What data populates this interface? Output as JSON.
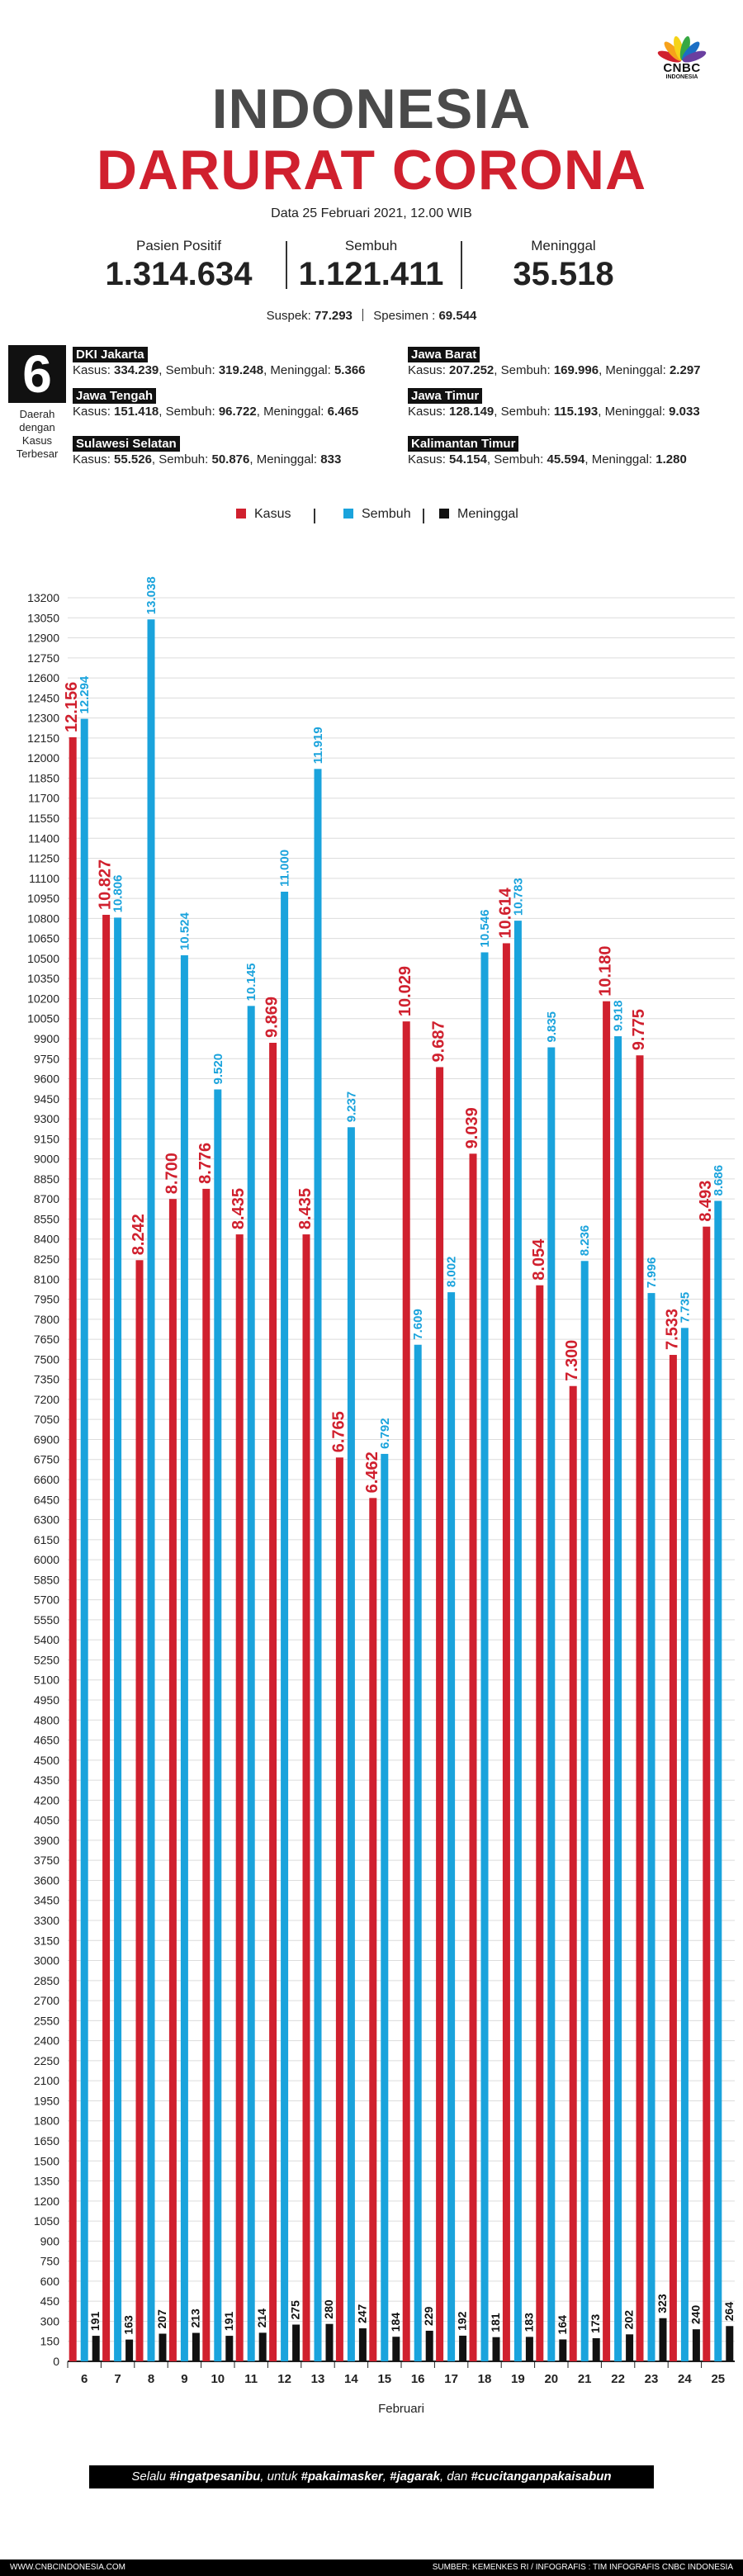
{
  "brand": {
    "logo_text": "CNBC",
    "logo_sub": "INDONESIA"
  },
  "header": {
    "title_line1": "INDONESIA",
    "title_line2": "DARURAT CORONA",
    "datetime": "Data 25 Februari 2021, 12.00 WIB"
  },
  "stats": [
    {
      "label": "Pasien Positif",
      "value": "1.314.634"
    },
    {
      "label": "Sembuh",
      "value": "1.121.411"
    },
    {
      "label": "Meninggal",
      "value": "35.518"
    }
  ],
  "suspek": {
    "suspek_label": "Suspek:",
    "suspek_value": "77.293",
    "spesimen_label": "Spesimen :",
    "spesimen_value": "69.544"
  },
  "regions_header": {
    "count": "6",
    "caption_l1": "Daerah",
    "caption_l2": "dengan",
    "caption_l3": "Kasus",
    "caption_l4": "Terbesar"
  },
  "regions": [
    {
      "name": "DKI Jakarta",
      "kasus_label": "Kasus:",
      "kasus": "334.239",
      "sembuh_label": "Sembuh:",
      "sembuh": "319.248",
      "meninggal_label": "Meninggal:",
      "meninggal": "5.366"
    },
    {
      "name": "Jawa Barat",
      "kasus_label": "Kasus:",
      "kasus": "207.252",
      "sembuh_label": "Sembuh:",
      "sembuh": "169.996",
      "meninggal_label": "Meninggal:",
      "meninggal": "2.297"
    },
    {
      "name": "Jawa Tengah",
      "kasus_label": "Kasus:",
      "kasus": "151.418",
      "sembuh_label": "Sembuh:",
      "sembuh": "96.722",
      "meninggal_label": "Meninggal:",
      "meninggal": "6.465"
    },
    {
      "name": "Jawa Timur",
      "kasus_label": "Kasus:",
      "kasus": "128.149",
      "sembuh_label": "Sembuh:",
      "sembuh": "115.193",
      "meninggal_label": "Meninggal:",
      "meninggal": "9.033"
    },
    {
      "name": "Sulawesi Selatan",
      "kasus_label": "Kasus:",
      "kasus": "55.526",
      "sembuh_label": "Sembuh:",
      "sembuh": "50.876",
      "meninggal_label": "Meninggal:",
      "meninggal": "833"
    },
    {
      "name": "Kalimantan Timur",
      "kasus_label": "Kasus:",
      "kasus": "54.154",
      "sembuh_label": "Sembuh:",
      "sembuh": "45.594",
      "meninggal_label": "Meninggal:",
      "meninggal": "1.280"
    }
  ],
  "colors": {
    "kasus": "#d0202e",
    "sembuh": "#1aa3dc",
    "meninggal": "#111111",
    "grid": "#dcdcdc",
    "title_gray": "#4a4a4a"
  },
  "chart_data": {
    "type": "bar",
    "xlabel": "Februari",
    "ylabel": "",
    "ylim": [
      0,
      13200
    ],
    "ytick_step": 150,
    "grid": true,
    "legend_position": "top-center",
    "categories": [
      "6",
      "7",
      "8",
      "9",
      "10",
      "11",
      "12",
      "13",
      "14",
      "15",
      "16",
      "17",
      "18",
      "19",
      "20",
      "21",
      "22",
      "23",
      "24",
      "25"
    ],
    "series": [
      {
        "name": "Kasus",
        "color": "#d0202e",
        "values": [
          12156,
          10827,
          8242,
          8700,
          8776,
          8435,
          9869,
          8435,
          6765,
          6462,
          10029,
          9687,
          9039,
          10614,
          8054,
          7300,
          10180,
          9775,
          7533,
          8493
        ],
        "labels": [
          "12.156",
          "10.827",
          "8.242",
          "8.700",
          "8.776",
          "8.435",
          "9.869",
          "8.435",
          "6.765",
          "6.462",
          "10.029",
          "9.687",
          "9.039",
          "10.614",
          "8.054",
          "7.300",
          "10.180",
          "9.775",
          "7.533",
          "8.493"
        ]
      },
      {
        "name": "Sembuh",
        "color": "#1aa3dc",
        "values": [
          12294,
          10806,
          13038,
          10524,
          9520,
          10145,
          11000,
          11919,
          9237,
          6792,
          7609,
          8002,
          10546,
          10783,
          9835,
          8236,
          9918,
          7996,
          7735,
          8686
        ],
        "labels": [
          "12.294",
          "10.806",
          "13.038",
          "10.524",
          "9.520",
          "10.145",
          "11.000",
          "11.919",
          "9.237",
          "6.792",
          "7.609",
          "8.002",
          "10.546",
          "10.783",
          "9.835",
          "8.236",
          "9.918",
          "7.996",
          "7.735",
          "8.686"
        ]
      },
      {
        "name": "Meninggal",
        "color": "#111111",
        "values": [
          191,
          163,
          207,
          213,
          191,
          214,
          275,
          280,
          247,
          184,
          229,
          192,
          181,
          183,
          164,
          173,
          202,
          323,
          240,
          264
        ],
        "labels": [
          "191",
          "163",
          "207",
          "213",
          "191",
          "214",
          "275",
          "280",
          "247",
          "184",
          "229",
          "192",
          "181",
          "183",
          "164",
          "173",
          "202",
          "323",
          "240",
          "264"
        ]
      }
    ]
  },
  "footer": {
    "banner_pre": "Selalu ",
    "banner_t1": "#ingatpesanibu",
    "banner_mid1": ", untuk ",
    "banner_t2": "#pakaimasker",
    "banner_mid2": ", ",
    "banner_t3": "#jagarak",
    "banner_mid3": ", dan ",
    "banner_t4": "#cucitanganpakaisabun",
    "site": "WWW.CNBCINDONESIA.COM",
    "source": "SUMBER: KEMENKES RI / INFOGRAFIS : TIM INFOGRAFIS CNBC INDONESIA"
  }
}
